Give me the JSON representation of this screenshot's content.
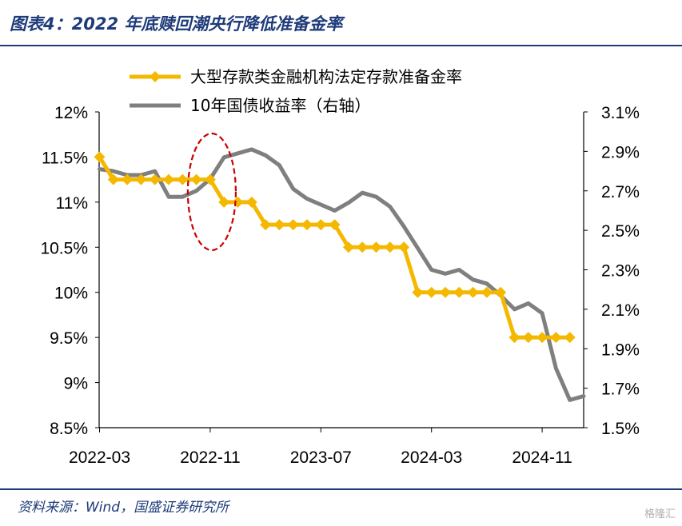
{
  "header": {
    "title": "图表4：2022 年底赎回潮央行降低准备金率"
  },
  "footer": {
    "source": "资料来源：Wind，国盛证券研究所",
    "watermark": "格隆汇"
  },
  "colors": {
    "rrr": "#f5b800",
    "yield": "#7f7f7f",
    "highlight": "#cc0000",
    "title": "#1f3b7a"
  },
  "chart_data": {
    "type": "line",
    "x_tick_labels": [
      "2022-03",
      "2022-11",
      "2023-07",
      "2024-03",
      "2024-11"
    ],
    "y_left": {
      "range": [
        8.5,
        12
      ],
      "ticks": [
        "12%",
        "11.5%",
        "11%",
        "10.5%",
        "10%",
        "9.5%",
        "9%",
        "8.5%"
      ]
    },
    "y_right": {
      "range": [
        1.5,
        3.1
      ],
      "ticks": [
        "3.1%",
        "2.9%",
        "2.7%",
        "2.5%",
        "2.3%",
        "2.1%",
        "1.9%",
        "1.7%",
        "1.5%"
      ]
    },
    "legend_placement": "top-center",
    "series": [
      {
        "name": "大型存款类金融机构法定存款准备金率",
        "axis": "left",
        "marker": "diamond",
        "values": [
          11.5,
          11.25,
          11.25,
          11.25,
          11.25,
          11.25,
          11.25,
          11.25,
          11.25,
          11.0,
          11.0,
          11.0,
          10.75,
          10.75,
          10.75,
          10.75,
          10.75,
          10.75,
          10.5,
          10.5,
          10.5,
          10.5,
          10.5,
          10.0,
          10.0,
          10.0,
          10.0,
          10.0,
          10.0,
          10.0,
          9.5,
          9.5,
          9.5,
          9.5,
          9.5
        ]
      },
      {
        "name": "10年国债收益率（右轴）",
        "axis": "right",
        "marker": "none",
        "values": [
          2.81,
          2.8,
          2.78,
          2.78,
          2.8,
          2.67,
          2.67,
          2.7,
          2.76,
          2.87,
          2.89,
          2.91,
          2.88,
          2.83,
          2.71,
          2.66,
          2.63,
          2.6,
          2.64,
          2.69,
          2.67,
          2.62,
          2.52,
          2.41,
          2.3,
          2.28,
          2.3,
          2.25,
          2.23,
          2.17,
          2.1,
          2.13,
          2.08,
          1.8,
          1.64,
          1.66
        ]
      }
    ],
    "annotation": {
      "type": "dashed-ellipse",
      "at_index": 8
    }
  }
}
